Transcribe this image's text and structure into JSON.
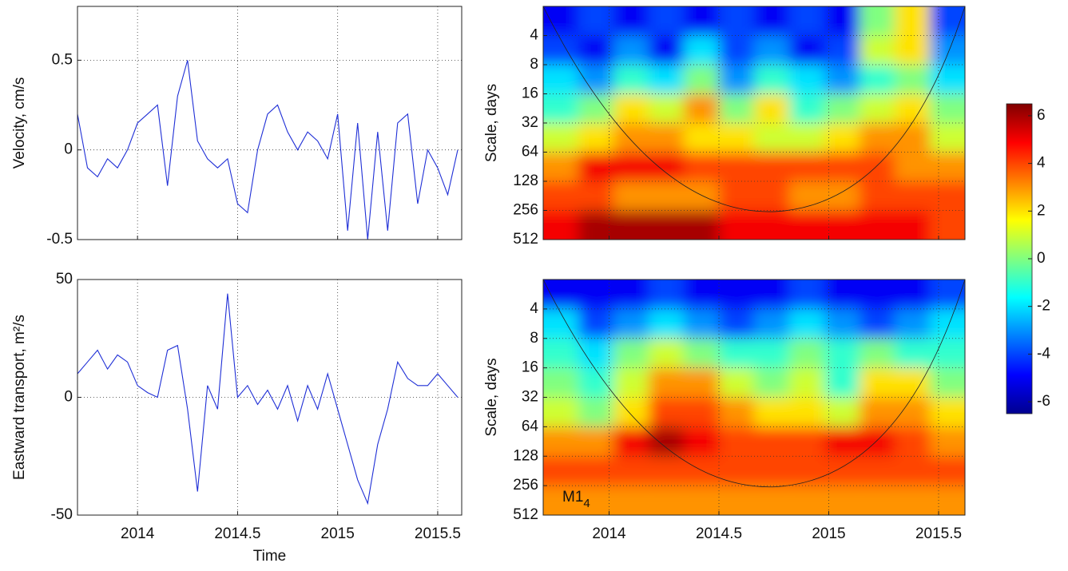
{
  "chart_data": [
    {
      "type": "line",
      "ylabel": "Velocity, cm/s",
      "x": [
        2013.7,
        2013.75,
        2013.8,
        2013.85,
        2013.9,
        2013.95,
        2014.0,
        2014.05,
        2014.1,
        2014.15,
        2014.2,
        2014.25,
        2014.3,
        2014.35,
        2014.4,
        2014.45,
        2014.5,
        2014.55,
        2014.6,
        2014.65,
        2014.7,
        2014.75,
        2014.8,
        2014.85,
        2014.9,
        2014.95,
        2015.0,
        2015.05,
        2015.1,
        2015.15,
        2015.2,
        2015.25,
        2015.3,
        2015.35,
        2015.4,
        2015.45,
        2015.5,
        2015.55,
        2015.6
      ],
      "series": [
        {
          "color": "#1f2fd6",
          "values": [
            0.2,
            -0.1,
            -0.15,
            -0.05,
            -0.1,
            0.0,
            0.15,
            0.2,
            0.25,
            -0.2,
            0.3,
            0.5,
            0.05,
            -0.05,
            -0.1,
            -0.05,
            -0.3,
            -0.35,
            0.0,
            0.2,
            0.25,
            0.1,
            0.0,
            0.1,
            0.05,
            -0.05,
            0.2,
            -0.45,
            0.15,
            -0.5,
            0.1,
            -0.45,
            0.15,
            0.2,
            -0.3,
            0.0,
            -0.1,
            -0.25,
            0.0
          ]
        }
      ],
      "xlim": [
        2013.7,
        2015.62
      ],
      "xticks": [
        2014,
        2014.5,
        2015,
        2015.5
      ],
      "xticklabels": false,
      "ylim": [
        -0.5,
        0.8
      ],
      "yticks": [
        -0.5,
        0,
        0.5
      ],
      "grid": true
    },
    {
      "type": "line",
      "ylabel": "Eastward transport, m²/s",
      "xlabel": "Time",
      "x": [
        2013.7,
        2013.75,
        2013.8,
        2013.85,
        2013.9,
        2013.95,
        2014.0,
        2014.05,
        2014.1,
        2014.15,
        2014.2,
        2014.25,
        2014.3,
        2014.35,
        2014.4,
        2014.45,
        2014.5,
        2014.55,
        2014.6,
        2014.65,
        2014.7,
        2014.75,
        2014.8,
        2014.85,
        2014.9,
        2014.95,
        2015.0,
        2015.05,
        2015.1,
        2015.15,
        2015.2,
        2015.25,
        2015.3,
        2015.35,
        2015.4,
        2015.45,
        2015.5,
        2015.55,
        2015.6
      ],
      "series": [
        {
          "color": "#1f2fd6",
          "values": [
            10,
            15,
            20,
            12,
            18,
            15,
            5,
            2,
            0,
            20,
            22,
            -5,
            -40,
            5,
            -5,
            44,
            0,
            5,
            -3,
            3,
            -5,
            5,
            -10,
            5,
            -5,
            10,
            -5,
            -20,
            -35,
            -45,
            -20,
            -5,
            15,
            8,
            5,
            5,
            10,
            5,
            0
          ]
        }
      ],
      "xlim": [
        2013.7,
        2015.62
      ],
      "xticks": [
        2014,
        2014.5,
        2015,
        2015.5
      ],
      "ylim": [
        -50,
        50
      ],
      "yticks": [
        -50,
        0,
        50
      ],
      "grid": true
    },
    {
      "type": "heatmap",
      "ylabel": "Scale, days",
      "xbins": [
        2013.7,
        2013.86,
        2014.02,
        2014.18,
        2014.34,
        2014.5,
        2014.66,
        2014.82,
        2014.98,
        2015.14,
        2015.3,
        2015.46,
        2015.62
      ],
      "ybins": [
        2,
        4,
        8,
        16,
        32,
        64,
        128,
        256,
        512
      ],
      "z": [
        [
          -5,
          -4,
          -5,
          -4,
          -5,
          -4,
          -5,
          -4,
          -5,
          0,
          2,
          -4
        ],
        [
          -4,
          -5,
          -3,
          -5,
          -2,
          -4,
          -3,
          -5,
          -4,
          1,
          2,
          -3
        ],
        [
          -2,
          -3,
          -1,
          -2,
          0,
          -3,
          -1,
          -2,
          -3,
          -1,
          0,
          -2
        ],
        [
          -1,
          0,
          2,
          1,
          3,
          0,
          2,
          -1,
          0,
          1,
          2,
          0
        ],
        [
          1,
          2,
          3,
          3,
          2,
          2,
          1,
          1,
          2,
          3,
          3,
          1
        ],
        [
          3,
          5,
          5,
          5,
          4,
          4,
          4,
          4,
          4,
          4,
          3,
          3
        ],
        [
          4,
          4,
          3,
          3,
          3,
          4,
          4,
          3,
          3,
          4,
          4,
          4
        ],
        [
          5,
          6,
          6,
          6,
          6,
          5,
          5,
          5,
          5,
          5,
          5,
          4
        ]
      ],
      "xlim": [
        2013.7,
        2015.62
      ],
      "xticks": [
        2014,
        2014.5,
        2015,
        2015.5
      ],
      "xticklabels": false,
      "ylim": [
        2,
        512
      ],
      "yscale": "log",
      "yreversed": true,
      "yticks": [
        4,
        8,
        16,
        32,
        64,
        128,
        256,
        512
      ],
      "grid": true,
      "colorbar": {
        "zlim": [
          -6.5,
          6.5
        ],
        "ticks": [
          -6,
          -4,
          -2,
          0,
          2,
          4,
          6
        ]
      }
    },
    {
      "type": "heatmap",
      "ylabel": "Scale, days",
      "annotation": {
        "text": "M1",
        "subscript": "4"
      },
      "xbins": [
        2013.7,
        2013.86,
        2014.02,
        2014.18,
        2014.34,
        2014.5,
        2014.66,
        2014.82,
        2014.98,
        2015.14,
        2015.3,
        2015.46,
        2015.62
      ],
      "ybins": [
        2,
        4,
        8,
        16,
        32,
        64,
        128,
        256,
        512
      ],
      "z": [
        [
          -5,
          -5,
          -5,
          -4,
          -5,
          -5,
          -5,
          -4,
          -5,
          -5,
          -5,
          -4
        ],
        [
          -2,
          -4,
          -3,
          -2,
          -3,
          -4,
          -3,
          -2,
          -3,
          -4,
          -3,
          -2
        ],
        [
          -1,
          -2,
          0,
          1,
          0,
          -1,
          -1,
          0,
          -1,
          0,
          -1,
          -1
        ],
        [
          0,
          -1,
          1,
          3,
          3,
          1,
          0,
          1,
          -1,
          2,
          2,
          0
        ],
        [
          1,
          0,
          2,
          4,
          4,
          3,
          2,
          2,
          1,
          3,
          3,
          2
        ],
        [
          3,
          3,
          5,
          6,
          5,
          4,
          4,
          4,
          5,
          5,
          4,
          3
        ],
        [
          4,
          4,
          4,
          4,
          4,
          4,
          4,
          4,
          4,
          4,
          4,
          4
        ],
        [
          3,
          3,
          3,
          3,
          3,
          3,
          3,
          3,
          3,
          3,
          3,
          3
        ]
      ],
      "xlim": [
        2013.7,
        2015.62
      ],
      "xticks": [
        2014,
        2014.5,
        2015,
        2015.5
      ],
      "ylim": [
        2,
        512
      ],
      "yscale": "log",
      "yreversed": true,
      "yticks": [
        4,
        8,
        16,
        32,
        64,
        128,
        256,
        512
      ],
      "grid": true
    }
  ]
}
